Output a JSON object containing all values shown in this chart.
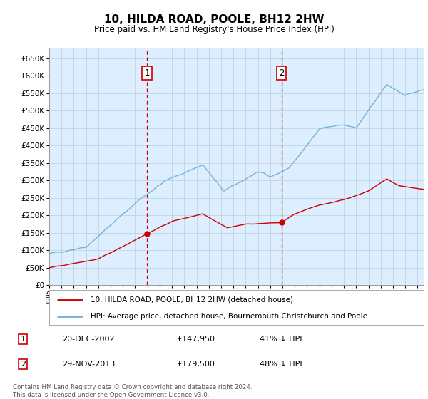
{
  "title": "10, HILDA ROAD, POOLE, BH12 2HW",
  "subtitle": "Price paid vs. HM Land Registry's House Price Index (HPI)",
  "legend_line1": "10, HILDA ROAD, POOLE, BH12 2HW (detached house)",
  "legend_line2": "HPI: Average price, detached house, Bournemouth Christchurch and Poole",
  "transaction1_label": "1",
  "transaction1_date": "20-DEC-2002",
  "transaction1_price": "£147,950",
  "transaction1_hpi": "41% ↓ HPI",
  "transaction1_year": 2002.97,
  "transaction1_price_val": 147950,
  "transaction2_label": "2",
  "transaction2_date": "29-NOV-2013",
  "transaction2_price": "£179,500",
  "transaction2_hpi": "48% ↓ HPI",
  "transaction2_year": 2013.91,
  "transaction2_price_val": 179500,
  "footer": "Contains HM Land Registry data © Crown copyright and database right 2024.\nThis data is licensed under the Open Government Licence v3.0.",
  "hpi_color": "#7ab0d8",
  "price_color": "#cc0000",
  "marker_color": "#cc0000",
  "vline_color": "#cc0000",
  "bg_color": "#ddeeff",
  "plot_bg": "#ffffff",
  "grid_color": "#bbccdd",
  "ylim": [
    0,
    680000
  ],
  "yticks": [
    0,
    50000,
    100000,
    150000,
    200000,
    250000,
    300000,
    350000,
    400000,
    450000,
    500000,
    550000,
    600000,
    650000
  ],
  "xlim_start": 1995.0,
  "xlim_end": 2025.5
}
